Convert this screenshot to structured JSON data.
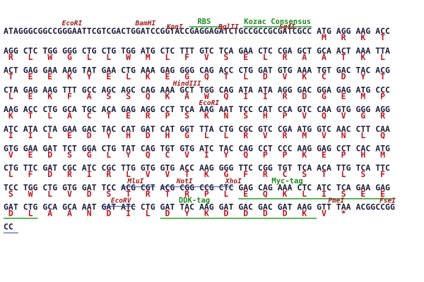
{
  "rows": [
    {
      "dna": "ATAGGGCGGCCGGGAATTCGTCGACTGGATCCGGTACCGAGGAGATCTGCCGCCGCGATCGCC ATG AGG AAG ACC",
      "aa": [
        "M",
        "R",
        "K",
        "T"
      ]
    },
    {
      "dna": "AGG CTC TGG GGG CTG CTG TGG ATG CTC TTT GTC TCA GAA CTC CGA GCT GCA ACT AAA TTA",
      "aa": [
        "R",
        "L",
        "W",
        "G",
        "L",
        "L",
        "W",
        "M",
        "L",
        "F",
        "V",
        "S",
        "E",
        "L",
        "R",
        "A",
        "A",
        "T",
        "K",
        "L"
      ]
    },
    {
      "dna": "ACT GAG GAA AAG TAT GAA CTG AAA GAG GGG CAG ACC CTG GAT GTG AAA TGT GAC TAC ACG",
      "aa": [
        "T",
        "E",
        "E",
        "K",
        "Y",
        "E",
        "L",
        "K",
        "E",
        "G",
        "Q",
        "T",
        "L",
        "D",
        "V",
        "K",
        "C",
        "D",
        "Y",
        "T"
      ]
    },
    {
      "dna": "CTA GAG AAG TTT GCC AGC AGC CAG AAA GCT TGG CAG ATA ATA AGG GAC GGA GAG ATG CCC",
      "aa": [
        "L",
        "E",
        "K",
        "F",
        "A",
        "S",
        "S",
        "Q",
        "K",
        "A",
        "W",
        "Q",
        "I",
        "I",
        "R",
        "D",
        "G",
        "E",
        "M",
        "P"
      ]
    },
    {
      "dna": "AAG ACC CTG GCA TGC ACA GAG AGG CCT TCA AAG AAT TCC CAT CCA GTC CAA GTG GGG AGG",
      "aa": [
        "K",
        "T",
        "L",
        "A",
        "C",
        "T",
        "E",
        "R",
        "P",
        "S",
        "K",
        "N",
        "S",
        "H",
        "P",
        "V",
        "Q",
        "V",
        "G",
        "R"
      ]
    },
    {
      "dna": "ATC ATA CTA GAA GAC TAC CAT GAT CAT GGT TTA CTG CGC GTC CGA ATG GTC AAC CTT CAA",
      "aa": [
        "I",
        "I",
        "L",
        "E",
        "D",
        "Y",
        "H",
        "D",
        "H",
        "G",
        "L",
        "L",
        "R",
        "V",
        "R",
        "M",
        "V",
        "N",
        "L",
        "Q"
      ]
    },
    {
      "dna": "GTG GAA GAT TCT GGA CTG TAT CAG TGT GTG ATC TAC CAG CCT CCC AAG GAG CCT CAC ATG",
      "aa": [
        "V",
        "E",
        "D",
        "S",
        "G",
        "L",
        "Y",
        "Q",
        "C",
        "V",
        "I",
        "Y",
        "Q",
        "P",
        "P",
        "K",
        "E",
        "P",
        "H",
        "M"
      ]
    },
    {
      "dna": "CTG TTC GAT CGC ATC CGC TTG GTG GTG ACC AAG GGG TTC CGG TGT TCA ACA TTG TCA TTC",
      "aa": [
        "L",
        "F",
        "D",
        "R",
        "I",
        "R",
        "L",
        "V",
        "V",
        "T",
        "K",
        "G",
        "F",
        "R",
        "C",
        "S",
        "T",
        "L",
        "S",
        "F"
      ]
    },
    {
      "dna": "TCC TGG CTG GTG GAT TCC ACG CGT ACG CGG CCG CTC GAG CAG AAA CTC ATC TCA GAA GAG",
      "aa": [
        "S",
        "W",
        "L",
        "V",
        "D",
        "S",
        "T",
        "R",
        "T",
        "R",
        "P",
        "L",
        "E",
        "Q",
        "K",
        "L",
        "I",
        "S",
        "E",
        "E"
      ]
    },
    {
      "dna": "GAT CTG GCA GCA AAT GAT ATC CTG GAT TAC AAG GAT GAC GAC GAT AAG GTT TAA ACGGCCGG",
      "aa": [
        "D",
        "L",
        "A",
        "A",
        "N",
        "D",
        "I",
        "L",
        "D",
        "Y",
        "K",
        "D",
        "D",
        "D",
        "D",
        "K",
        "V",
        "*"
      ]
    },
    {
      "dna": "CC",
      "aa": []
    }
  ],
  "labels": [
    {
      "text": "EcoRI"
    },
    {
      "text": "BamHI"
    },
    {
      "text": "KpnI"
    },
    {
      "text": "RBS"
    },
    {
      "text": "BglII"
    },
    {
      "text": "Kozac Consensus"
    },
    {
      "text": "SgfI"
    },
    {
      "text": "HindIII"
    },
    {
      "text": "EcoRI"
    },
    {
      "text": "MluI"
    },
    {
      "text": "NotI"
    },
    {
      "text": "XhoI"
    },
    {
      "text": "Myc-tag"
    },
    {
      "text": "EcoRV"
    },
    {
      "text": "DDK-tag"
    },
    {
      "text": "PmeI"
    },
    {
      "text": "FseI"
    }
  ]
}
